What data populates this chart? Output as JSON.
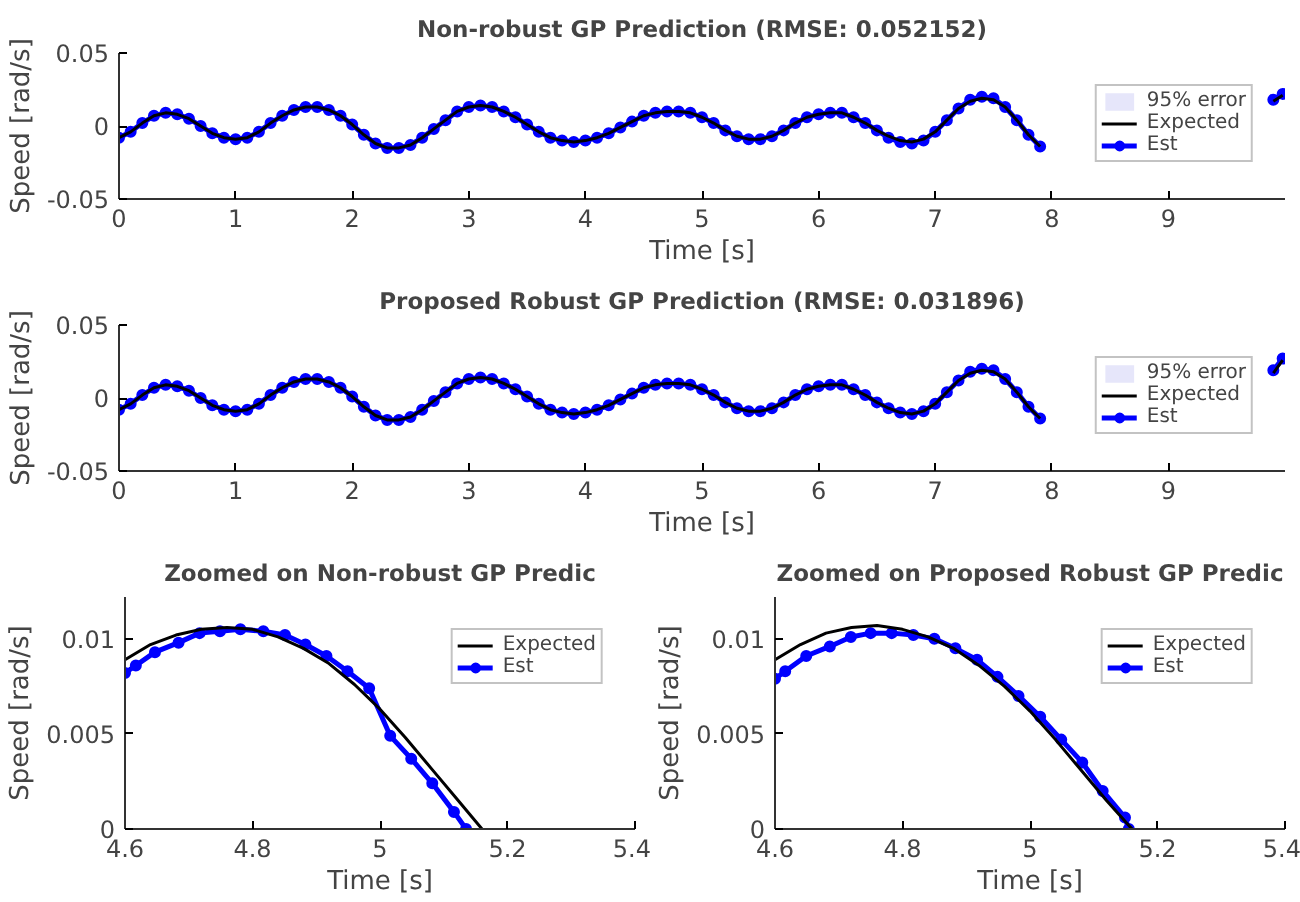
{
  "chart_data": [
    {
      "type": "line",
      "title": "Non-robust GP Prediction (RMSE: 0.052152)",
      "xlabel": "Time [s]",
      "ylabel": "Speed [rad/s]",
      "xlim": [
        0,
        10
      ],
      "ylim": [
        -0.05,
        0.05
      ],
      "xticks": [
        0,
        1,
        2,
        3,
        4,
        5,
        6,
        7,
        8,
        9
      ],
      "yticks": [
        -0.05,
        0,
        0.05
      ],
      "legend": "top right",
      "x": [
        0,
        0.1,
        0.2,
        0.3,
        0.4,
        0.5,
        0.6,
        0.7,
        0.8,
        0.9,
        1,
        1.1,
        1.2,
        1.3,
        1.4,
        1.5,
        1.6,
        1.7,
        1.8,
        1.9,
        2,
        2.1,
        2.2,
        2.3,
        2.4,
        2.5,
        2.6,
        2.7,
        2.8,
        2.9,
        3,
        3.1,
        3.2,
        3.3,
        3.4,
        3.5,
        3.6,
        3.7,
        3.8,
        3.9,
        4,
        4.1,
        4.2,
        4.3,
        4.4,
        4.5,
        4.6,
        4.7,
        4.8,
        4.9,
        5,
        5.1,
        5.2,
        5.3,
        5.4,
        5.5,
        5.6,
        5.7,
        5.8,
        5.9,
        6,
        6.1,
        6.2,
        6.3,
        6.4,
        6.5,
        6.6,
        6.7,
        6.8,
        6.9,
        7,
        7.1,
        7.2,
        7.3,
        7.4,
        7.5,
        7.6,
        7.7,
        7.8,
        7.9,
        8,
        9.8,
        9.9,
        9.98
      ],
      "series": [
        {
          "name": "95% error",
          "type": "area",
          "color": "#e6e6fa",
          "values": [
            null,
            null,
            null,
            null,
            null,
            null,
            null,
            null,
            null,
            null,
            null,
            null,
            null,
            null,
            null,
            null,
            null,
            null,
            null,
            null,
            null,
            null,
            null,
            null,
            null,
            null,
            null,
            null,
            null,
            null,
            null,
            null,
            null,
            null,
            null,
            null,
            null,
            null,
            null,
            null,
            null,
            null,
            null,
            null,
            null,
            null,
            null,
            null,
            null,
            null,
            null,
            null,
            null,
            null,
            null,
            null,
            null,
            null,
            null,
            null,
            null,
            null,
            null,
            null,
            null,
            null,
            null,
            null,
            null,
            null,
            null,
            null,
            null,
            null,
            null,
            null,
            null,
            null,
            null,
            null,
            null,
            null,
            null,
            null
          ],
          "lower": [
            null,
            null,
            null,
            null,
            null,
            null,
            null,
            null,
            null,
            null,
            null,
            null,
            null,
            null,
            null,
            null,
            null,
            null,
            null,
            null,
            null,
            null,
            null,
            null,
            null,
            null,
            null,
            null,
            null,
            null,
            null,
            null,
            null,
            null,
            null,
            null,
            null,
            null,
            null,
            null,
            null,
            null,
            null,
            null,
            null,
            null,
            null,
            null,
            null,
            null,
            null,
            null,
            null,
            null,
            null,
            null,
            null,
            null,
            null,
            null,
            null,
            null,
            null,
            null,
            null,
            null,
            null,
            null,
            null,
            null,
            null,
            null,
            null,
            null,
            null,
            null,
            null,
            null,
            null,
            null,
            null,
            null,
            null,
            null
          ]
        },
        {
          "name": "Expected",
          "color": "#000000",
          "marker": "none",
          "values": [
            -0.008,
            -0.004,
            0.002,
            0.007,
            0.009,
            0.008,
            0.005,
            0.0,
            -0.005,
            -0.008,
            -0.009,
            -0.008,
            -0.004,
            0.002,
            0.007,
            0.011,
            0.013,
            0.013,
            0.011,
            0.007,
            0.001,
            -0.006,
            -0.012,
            -0.015,
            -0.015,
            -0.013,
            -0.008,
            -0.002,
            0.004,
            0.01,
            0.013,
            0.014,
            0.013,
            0.01,
            0.006,
            0.001,
            -0.004,
            -0.008,
            -0.01,
            -0.011,
            -0.01,
            -0.008,
            -0.005,
            -0.001,
            0.003,
            0.007,
            0.009,
            0.01,
            0.01,
            0.009,
            0.006,
            0.002,
            -0.003,
            -0.007,
            -0.009,
            -0.009,
            -0.007,
            -0.003,
            0.002,
            0.006,
            0.008,
            0.009,
            0.009,
            0.006,
            0.002,
            -0.003,
            -0.007,
            -0.01,
            -0.011,
            -0.009,
            -0.004,
            0.004,
            0.012,
            0.017,
            0.019,
            0.018,
            0.013,
            0.004,
            -0.006,
            -0.014,
            null,
            null,
            0.017,
            0.021
          ]
        },
        {
          "name": "Est",
          "color": "#0000ff",
          "marker": "circle",
          "values": [
            -0.008,
            -0.004,
            0.002,
            0.007,
            0.009,
            0.008,
            0.005,
            0.0,
            -0.005,
            -0.008,
            -0.009,
            -0.008,
            -0.004,
            0.002,
            0.007,
            0.011,
            0.013,
            0.013,
            0.011,
            0.007,
            0.001,
            -0.006,
            -0.012,
            -0.015,
            -0.015,
            -0.013,
            -0.008,
            -0.002,
            0.004,
            0.01,
            0.013,
            0.014,
            0.013,
            0.01,
            0.006,
            0.001,
            -0.004,
            -0.008,
            -0.01,
            -0.011,
            -0.01,
            -0.008,
            -0.005,
            -0.001,
            0.003,
            0.007,
            0.009,
            0.01,
            0.01,
            0.009,
            0.006,
            0.002,
            -0.003,
            -0.007,
            -0.009,
            -0.009,
            -0.007,
            -0.003,
            0.002,
            0.006,
            0.008,
            0.009,
            0.009,
            0.006,
            0.002,
            -0.003,
            -0.008,
            -0.011,
            -0.012,
            -0.01,
            -0.004,
            0.004,
            0.012,
            0.018,
            0.02,
            0.019,
            0.013,
            0.004,
            -0.006,
            -0.014,
            null,
            null,
            0.018,
            0.022
          ]
        }
      ]
    },
    {
      "type": "line",
      "title": "Proposed Robust GP Prediction (RMSE: 0.031896)",
      "xlabel": "Time [s]",
      "ylabel": "Speed [rad/s]",
      "xlim": [
        0,
        10
      ],
      "ylim": [
        -0.05,
        0.05
      ],
      "xticks": [
        0,
        1,
        2,
        3,
        4,
        5,
        6,
        7,
        8,
        9
      ],
      "yticks": [
        -0.05,
        0,
        0.05
      ],
      "legend": "top right",
      "x": [
        0,
        0.1,
        0.2,
        0.3,
        0.4,
        0.5,
        0.6,
        0.7,
        0.8,
        0.9,
        1,
        1.1,
        1.2,
        1.3,
        1.4,
        1.5,
        1.6,
        1.7,
        1.8,
        1.9,
        2,
        2.1,
        2.2,
        2.3,
        2.4,
        2.5,
        2.6,
        2.7,
        2.8,
        2.9,
        3,
        3.1,
        3.2,
        3.3,
        3.4,
        3.5,
        3.6,
        3.7,
        3.8,
        3.9,
        4,
        4.1,
        4.2,
        4.3,
        4.4,
        4.5,
        4.6,
        4.7,
        4.8,
        4.9,
        5,
        5.1,
        5.2,
        5.3,
        5.4,
        5.5,
        5.6,
        5.7,
        5.8,
        5.9,
        6,
        6.1,
        6.2,
        6.3,
        6.4,
        6.5,
        6.6,
        6.7,
        6.8,
        6.9,
        7,
        7.1,
        7.2,
        7.3,
        7.4,
        7.5,
        7.6,
        7.7,
        7.8,
        7.9,
        8,
        9.8,
        9.9,
        9.98
      ],
      "series": [
        {
          "name": "95% error",
          "type": "area",
          "color": "#e6e6fa",
          "values": [
            null,
            null,
            null,
            null,
            null,
            null,
            null,
            null,
            null,
            null,
            null,
            null,
            null,
            null,
            null,
            null,
            null,
            null,
            null,
            null,
            null,
            null,
            null,
            null,
            null,
            null,
            null,
            null,
            null,
            null,
            null,
            null,
            null,
            null,
            null,
            null,
            null,
            null,
            null,
            null,
            null,
            null,
            null,
            null,
            null,
            null,
            null,
            null,
            null,
            null,
            null,
            null,
            null,
            null,
            null,
            null,
            null,
            null,
            null,
            null,
            null,
            null,
            null,
            null,
            null,
            null,
            null,
            null,
            null,
            null,
            null,
            null,
            null,
            null,
            null,
            null,
            null,
            null,
            null,
            null,
            null,
            null,
            null,
            null
          ],
          "lower": [
            null,
            null,
            null,
            null,
            null,
            null,
            null,
            null,
            null,
            null,
            null,
            null,
            null,
            null,
            null,
            null,
            null,
            null,
            null,
            null,
            null,
            null,
            null,
            null,
            null,
            null,
            null,
            null,
            null,
            null,
            null,
            null,
            null,
            null,
            null,
            null,
            null,
            null,
            null,
            null,
            null,
            null,
            null,
            null,
            null,
            null,
            null,
            null,
            null,
            null,
            null,
            null,
            null,
            null,
            null,
            null,
            null,
            null,
            null,
            null,
            null,
            null,
            null,
            null,
            null,
            null,
            null,
            null,
            null,
            null,
            null,
            null,
            null,
            null,
            null,
            null,
            null,
            null,
            null,
            null,
            null,
            null,
            null,
            null
          ]
        },
        {
          "name": "Expected",
          "color": "#000000",
          "marker": "none",
          "values": [
            -0.008,
            -0.004,
            0.002,
            0.007,
            0.009,
            0.008,
            0.005,
            0.0,
            -0.005,
            -0.008,
            -0.009,
            -0.008,
            -0.004,
            0.002,
            0.007,
            0.011,
            0.013,
            0.013,
            0.011,
            0.007,
            0.001,
            -0.006,
            -0.012,
            -0.015,
            -0.015,
            -0.013,
            -0.008,
            -0.002,
            0.004,
            0.01,
            0.013,
            0.014,
            0.013,
            0.01,
            0.006,
            0.001,
            -0.004,
            -0.008,
            -0.01,
            -0.011,
            -0.01,
            -0.008,
            -0.005,
            -0.001,
            0.003,
            0.007,
            0.009,
            0.01,
            0.01,
            0.009,
            0.006,
            0.002,
            -0.003,
            -0.007,
            -0.009,
            -0.009,
            -0.007,
            -0.003,
            0.002,
            0.006,
            0.008,
            0.009,
            0.009,
            0.006,
            0.002,
            -0.003,
            -0.007,
            -0.01,
            -0.011,
            -0.009,
            -0.004,
            0.004,
            0.012,
            0.017,
            0.019,
            0.018,
            0.013,
            0.004,
            -0.006,
            -0.014,
            null,
            null,
            0.017,
            0.026
          ]
        },
        {
          "name": "Est",
          "color": "#0000ff",
          "marker": "circle",
          "values": [
            -0.008,
            -0.004,
            0.002,
            0.007,
            0.009,
            0.008,
            0.005,
            0.0,
            -0.005,
            -0.008,
            -0.009,
            -0.008,
            -0.004,
            0.002,
            0.007,
            0.011,
            0.013,
            0.013,
            0.011,
            0.007,
            0.001,
            -0.006,
            -0.012,
            -0.015,
            -0.015,
            -0.013,
            -0.008,
            -0.002,
            0.004,
            0.01,
            0.013,
            0.014,
            0.013,
            0.01,
            0.006,
            0.001,
            -0.004,
            -0.008,
            -0.01,
            -0.011,
            -0.01,
            -0.008,
            -0.005,
            -0.001,
            0.003,
            0.007,
            0.009,
            0.01,
            0.01,
            0.009,
            0.006,
            0.002,
            -0.003,
            -0.007,
            -0.009,
            -0.009,
            -0.007,
            -0.003,
            0.002,
            0.006,
            0.008,
            0.009,
            0.009,
            0.006,
            0.002,
            -0.003,
            -0.007,
            -0.01,
            -0.011,
            -0.009,
            -0.004,
            0.004,
            0.012,
            0.018,
            0.02,
            0.019,
            0.013,
            0.004,
            -0.006,
            -0.014,
            null,
            null,
            0.019,
            0.027
          ]
        }
      ]
    },
    {
      "type": "line",
      "title": "Zoomed on Non-robust GP Predic",
      "xlabel": "Time [s]",
      "ylabel": "Speed [rad/s]",
      "xlim": [
        4.6,
        5.4
      ],
      "ylim": [
        0,
        0.0122
      ],
      "xticks": [
        4.6,
        4.8,
        5,
        5.2,
        5.4
      ],
      "yticks": [
        0,
        0.005,
        0.01
      ],
      "legend": "top right",
      "series": [
        {
          "name": "Expected",
          "type": "line",
          "color": "#000000",
          "marker": "none",
          "x": [
            4.6,
            4.64,
            4.68,
            4.72,
            4.76,
            4.8,
            4.84,
            4.88,
            4.92,
            4.96,
            5,
            5.04,
            5.08,
            5.12,
            5.16
          ],
          "values": [
            0.0089,
            0.0097,
            0.0102,
            0.0105,
            0.0106,
            0.0105,
            0.0101,
            0.0095,
            0.0087,
            0.0076,
            0.0063,
            0.0048,
            0.0032,
            0.0016,
            0
          ]
        },
        {
          "name": "Est",
          "type": "line",
          "color": "#0000ff",
          "marker": "circle",
          "x": [
            4.6,
            4.617,
            4.647,
            4.684,
            4.717,
            4.749,
            4.781,
            4.817,
            4.851,
            4.883,
            4.916,
            4.949,
            4.983,
            5.016,
            5.049,
            5.082,
            5.116,
            5.135
          ],
          "values": [
            0.0082,
            0.0086,
            0.0093,
            0.0098,
            0.0103,
            0.0104,
            0.0105,
            0.0104,
            0.0102,
            0.0097,
            0.0091,
            0.0083,
            0.0074,
            0.0049,
            0.0037,
            0.0024,
            0.0009,
            0
          ]
        }
      ]
    },
    {
      "type": "line",
      "title": "Zoomed on Proposed Robust GP Predic",
      "xlabel": "Time [s]",
      "ylabel": "Speed [rad/s]",
      "xlim": [
        4.6,
        5.4
      ],
      "ylim": [
        0,
        0.0122
      ],
      "xticks": [
        4.6,
        4.8,
        5,
        5.2,
        5.4
      ],
      "yticks": [
        0,
        0.005,
        0.01
      ],
      "legend": "top right",
      "series": [
        {
          "name": "Expected",
          "type": "line",
          "color": "#000000",
          "marker": "none",
          "x": [
            4.6,
            4.64,
            4.68,
            4.72,
            4.76,
            4.8,
            4.84,
            4.88,
            4.92,
            4.96,
            5,
            5.04,
            5.08,
            5.12,
            5.16
          ],
          "values": [
            0.0089,
            0.0097,
            0.0103,
            0.0106,
            0.0107,
            0.0105,
            0.0101,
            0.0095,
            0.0086,
            0.0075,
            0.0062,
            0.0047,
            0.0031,
            0.0015,
            0
          ]
        },
        {
          "name": "Est",
          "type": "line",
          "color": "#0000ff",
          "marker": "circle",
          "x": [
            4.6,
            4.616,
            4.649,
            4.686,
            4.719,
            4.75,
            4.783,
            4.817,
            4.85,
            4.883,
            4.917,
            4.949,
            4.982,
            5.016,
            5.049,
            5.082,
            5.114,
            5.149,
            5.155
          ],
          "values": [
            0.0079,
            0.0083,
            0.0091,
            0.0096,
            0.0101,
            0.0103,
            0.0103,
            0.0102,
            0.01,
            0.0095,
            0.0089,
            0.008,
            0.007,
            0.0059,
            0.0047,
            0.0035,
            0.002,
            0.0006,
            0
          ]
        }
      ]
    }
  ]
}
